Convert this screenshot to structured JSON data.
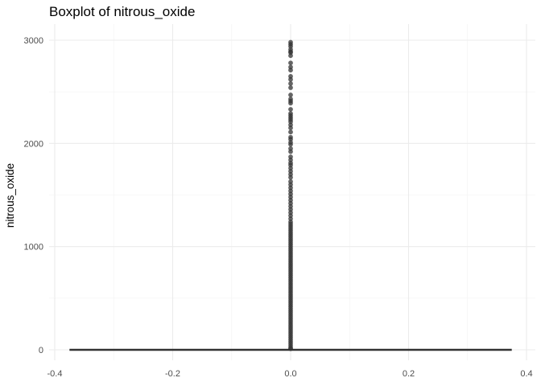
{
  "chart_data": {
    "type": "boxplot",
    "title": "Boxplot of nitrous_oxide",
    "xlabel": "",
    "ylabel": "nitrous_oxide",
    "xlim": [
      -0.4,
      0.4
    ],
    "ylim": [
      0,
      3000
    ],
    "x_ticks": [
      "-0.4",
      "-0.2",
      "0.0",
      "0.2",
      "0.4"
    ],
    "x_tick_values": [
      -0.4,
      -0.2,
      0.0,
      0.2,
      0.4
    ],
    "y_ticks": [
      "0",
      "1000",
      "2000",
      "3000"
    ],
    "y_tick_values": [
      0,
      1000,
      2000,
      3000
    ],
    "grid": true,
    "box": {
      "x": 0.0,
      "box_x_range": [
        -0.375,
        0.375
      ],
      "min": 0,
      "q1": 0,
      "median": 0,
      "q3": 0,
      "whisker_max": 0
    },
    "outliers": [
      2980,
      2960,
      2940,
      2910,
      2890,
      2880,
      2850,
      2780,
      2740,
      2710,
      2650,
      2620,
      2580,
      2540,
      2470,
      2430,
      2410,
      2390,
      2330,
      2290,
      2270,
      2250,
      2230,
      2210,
      2180,
      2150,
      2110,
      2060,
      2040,
      2010,
      1990,
      1950,
      1920,
      1870,
      1840,
      1810,
      1790,
      1760,
      1730,
      1700,
      1670,
      1630,
      1600,
      1570,
      1540,
      1510,
      1480,
      1450,
      1420,
      1390,
      1360,
      1330,
      1300,
      1270,
      1240,
      1220,
      1200,
      1180,
      1160,
      1140,
      1120,
      1100,
      1080,
      1060,
      1040,
      1020,
      1000,
      980,
      960,
      940,
      920,
      900,
      880,
      860,
      840,
      820,
      800,
      780,
      760,
      740,
      720,
      700,
      680,
      660,
      640,
      620,
      600,
      580,
      560,
      540,
      520,
      500,
      480,
      460,
      440,
      420,
      400,
      380,
      360,
      340,
      320,
      300,
      280,
      260,
      240,
      220,
      200,
      180,
      160,
      140,
      120,
      100,
      80,
      60,
      40,
      20,
      10
    ],
    "outlier_color": "#333333",
    "box_color": "#333333"
  }
}
